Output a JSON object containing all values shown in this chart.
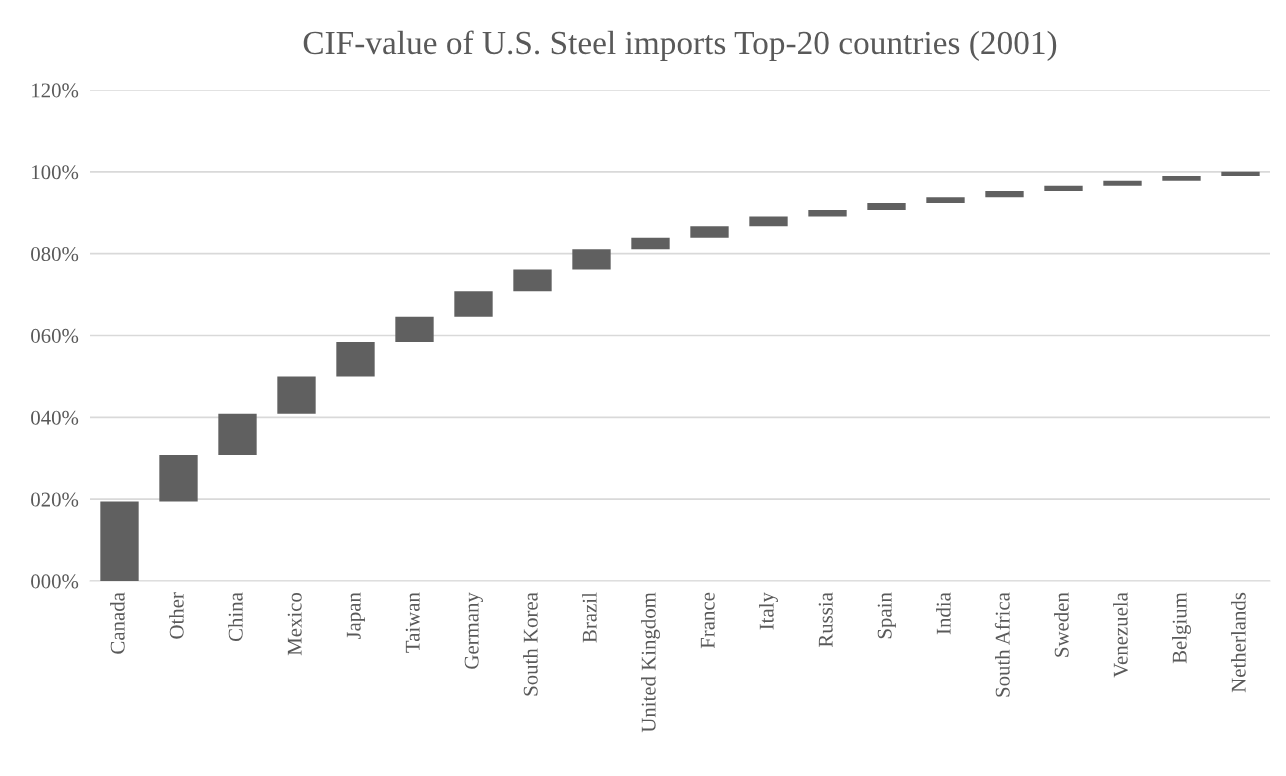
{
  "chart_data": {
    "type": "bar",
    "title": "CIF-value of U.S. Steel imports Top-20 countries (2001)",
    "categories": [
      "Canada",
      "Other",
      "China",
      "Mexico",
      "Japan",
      "Taiwan",
      "Germany",
      "South Korea",
      "Brazil",
      "United Kingdom",
      "France",
      "Italy",
      "Russia",
      "Spain",
      "India",
      "South Africa",
      "Sweden",
      "Venezuela",
      "Belgium",
      "Netherlands"
    ],
    "values": [
      19.4,
      11.4,
      10.1,
      9.1,
      8.4,
      6.2,
      6.2,
      5.3,
      5.0,
      2.8,
      2.8,
      2.4,
      1.6,
      1.7,
      1.4,
      1.5,
      1.3,
      1.2,
      1.2,
      1.0
    ],
    "base": [
      0,
      19.4,
      30.8,
      40.9,
      50.0,
      58.4,
      64.6,
      70.8,
      76.1,
      81.1,
      83.9,
      86.7,
      89.1,
      90.7,
      92.4,
      93.8,
      95.3,
      96.6,
      97.8,
      99.0
    ],
    "color": "#606060",
    "ylim": [
      0,
      120
    ],
    "yticks": [
      {
        "value": 0,
        "label": "000%"
      },
      {
        "value": 20,
        "label": "020%"
      },
      {
        "value": 40,
        "label": "040%"
      },
      {
        "value": 60,
        "label": "060%"
      },
      {
        "value": 80,
        "label": "080%"
      },
      {
        "value": 100,
        "label": "100%"
      },
      {
        "value": 120,
        "label": "120%"
      }
    ],
    "grid": "y",
    "legend": false
  }
}
